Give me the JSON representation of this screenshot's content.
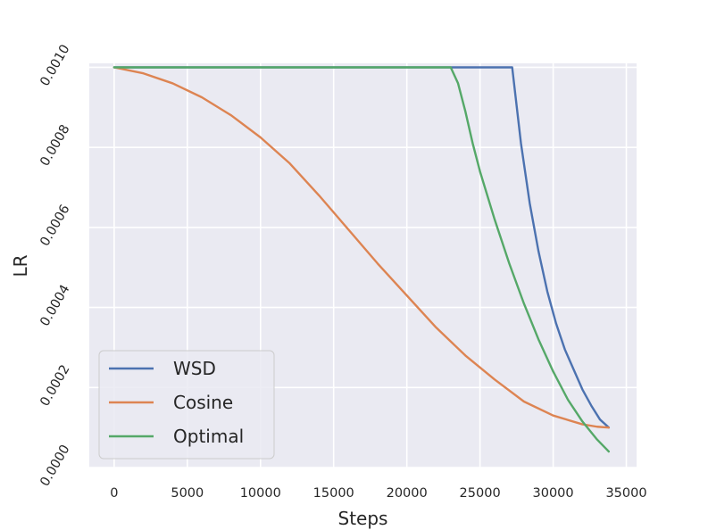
{
  "chart_data": {
    "type": "line",
    "title": "",
    "xlabel": "Steps",
    "ylabel": "LR",
    "xlim": [
      -1700,
      35700
    ],
    "ylim": [
      0.0,
      0.00101
    ],
    "xticks": [
      0,
      5000,
      10000,
      15000,
      20000,
      25000,
      30000,
      35000
    ],
    "xtick_labels": [
      "0",
      "5000",
      "10000",
      "15000",
      "20000",
      "25000",
      "30000",
      "35000"
    ],
    "yticks": [
      0.0,
      0.0002,
      0.0004,
      0.0006,
      0.0008,
      0.001
    ],
    "ytick_labels": [
      "0.0000",
      "0.0002",
      "0.0004",
      "0.0006",
      "0.0008",
      "0.0010"
    ],
    "grid": true,
    "background": "#eaeaf2",
    "legend_position": "lower-left",
    "series": [
      {
        "name": "WSD",
        "color": "#4c72b0",
        "x": [
          0,
          27200,
          27800,
          28400,
          29000,
          29600,
          30200,
          30800,
          31400,
          32000,
          32600,
          33200,
          33800
        ],
        "y": [
          0.001,
          0.001,
          0.00081,
          0.00066,
          0.00054,
          0.00044,
          0.00036,
          0.000295,
          0.000245,
          0.000195,
          0.000155,
          0.00012,
          0.0001
        ]
      },
      {
        "name": "Cosine",
        "color": "#dd8452",
        "x": [
          0,
          2000,
          4000,
          6000,
          8000,
          10000,
          12000,
          14000,
          16000,
          18000,
          20000,
          22000,
          24000,
          26000,
          28000,
          30000,
          32000,
          33000,
          33800
        ],
        "y": [
          0.001,
          0.000985,
          0.00096,
          0.000925,
          0.00088,
          0.000825,
          0.00076,
          0.00068,
          0.000595,
          0.00051,
          0.00043,
          0.00035,
          0.00028,
          0.00022,
          0.000165,
          0.00013,
          0.000108,
          0.000102,
          0.0001
        ]
      },
      {
        "name": "Optimal",
        "color": "#55a868",
        "x": [
          0,
          23000,
          23500,
          24000,
          24500,
          25000,
          26000,
          27000,
          28000,
          29000,
          30000,
          31000,
          32000,
          33000,
          33800
        ],
        "y": [
          0.001,
          0.001,
          0.00096,
          0.00089,
          0.00081,
          0.00074,
          0.00062,
          0.00051,
          0.00041,
          0.00032,
          0.00024,
          0.00017,
          0.000115,
          7e-05,
          4e-05
        ]
      }
    ]
  }
}
